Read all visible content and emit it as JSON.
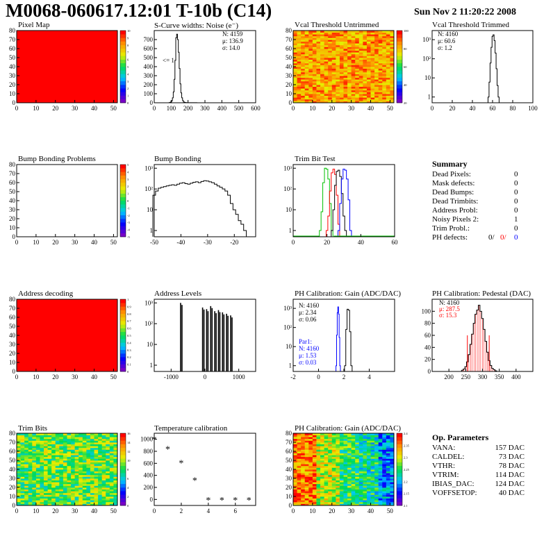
{
  "header": {
    "title": "M0068-060617.12:01 T-10b (C14)",
    "date": "Sun Nov  2 11:20:22 2008"
  },
  "panels": {
    "pixel_map": {
      "title": "Pixel Map"
    },
    "scurve": {
      "title": "S-Curve widths: Noise (e⁻)",
      "stats": [
        "N: 4159",
        "μ: 136.9",
        "σ: 14.0"
      ],
      "note": "<= 1"
    },
    "vcal_untrimmed": {
      "title": "Vcal Threshold Untrimmed"
    },
    "vcal_trimmed": {
      "title": "Vcal Threshold Trimmed",
      "stats": [
        "N: 4160",
        "μ: 60.6",
        "σ:  1.2"
      ]
    },
    "bump_problems": {
      "title": "Bump Bonding Problems"
    },
    "bump_bonding": {
      "title": "Bump Bonding"
    },
    "trim_bit_test": {
      "title": "Trim Bit Test"
    },
    "address_decoding": {
      "title": "Address decoding"
    },
    "address_levels": {
      "title": "Address Levels"
    },
    "ph_gain": {
      "title": "PH Calibration: Gain (ADC/DAC)",
      "stats": [
        "N: 4160",
        "μ: 2.34",
        "σ: 0.06"
      ],
      "par1": [
        "Par1:",
        "N: 4160",
        "μ: 1.53",
        "σ: 0.03"
      ]
    },
    "ph_pedestal": {
      "title": "PH Calibration: Pedestal (DAC)",
      "stats": [
        "N: 4160",
        "μ: 287.5",
        "σ: 15.3"
      ]
    },
    "trim_bits": {
      "title": "Trim Bits"
    },
    "temperature": {
      "title": "Temperature calibration"
    },
    "ph_gain_map": {
      "title": "PH Calibration: Gain (ADC/DAC)"
    }
  },
  "summary": {
    "header": "Summary",
    "rows": [
      {
        "label": "Dead Pixels:",
        "value": "0"
      },
      {
        "label": "Mask defects:",
        "value": "0"
      },
      {
        "label": "Dead Bumps:",
        "value": "0"
      },
      {
        "label": "Dead Trimbits:",
        "value": "0"
      },
      {
        "label": "Address Probl:",
        "value": "0"
      },
      {
        "label": "Noisy Pixels 2:",
        "value": "1"
      },
      {
        "label": "Trim Probl.:",
        "value": "0"
      }
    ],
    "ph_defects_label": "PH defects:",
    "ph_defects_values": [
      "0/",
      "0/",
      "0"
    ]
  },
  "op_params": {
    "header": "Op. Parameters",
    "rows": [
      {
        "label": "VANA:",
        "value": "157 DAC"
      },
      {
        "label": "CALDEL:",
        "value": "73 DAC"
      },
      {
        "label": "VTHR:",
        "value": "78 DAC"
      },
      {
        "label": "VTRIM:",
        "value": "114 DAC"
      },
      {
        "label": "IBIAS_DAC:",
        "value": "124 DAC"
      },
      {
        "label": "VOFFSETOP:",
        "value": "40 DAC"
      }
    ]
  },
  "colors": {
    "red": "#ff0000",
    "blue": "#0000ff",
    "green": "#00c000",
    "black": "#000000"
  },
  "chart_data": [
    {
      "id": "pixel_map",
      "type": "heatmap",
      "xlim": [
        0,
        52
      ],
      "ylim": [
        0,
        80
      ],
      "xticks": [
        "0",
        "10",
        "20",
        "30",
        "40",
        "50"
      ],
      "yticks": [
        "0",
        "10",
        "20",
        "30",
        "40",
        "50",
        "60",
        "70",
        "80"
      ],
      "fill": "uniform-max",
      "zlim": [
        0,
        10
      ],
      "zticks": [
        "0",
        "1",
        "2",
        "3",
        "4",
        "5",
        "6",
        "7",
        "8",
        "9",
        "10"
      ]
    },
    {
      "id": "scurve",
      "type": "histogram",
      "xlim": [
        0,
        600
      ],
      "ylim": [
        0,
        800
      ],
      "xticks": [
        "0",
        "100",
        "200",
        "300",
        "400",
        "500",
        "600"
      ],
      "yticks": [
        "0",
        "100",
        "200",
        "300",
        "400",
        "500",
        "600",
        "700"
      ],
      "x": [
        90,
        95,
        100,
        105,
        110,
        115,
        120,
        125,
        130,
        135,
        140,
        145,
        150,
        155,
        160,
        165,
        170,
        175,
        180,
        185,
        190,
        200,
        220,
        250
      ],
      "values": [
        2,
        5,
        10,
        22,
        55,
        120,
        260,
        470,
        720,
        760,
        700,
        560,
        380,
        210,
        110,
        55,
        25,
        10,
        5,
        3,
        2,
        1,
        1,
        1
      ]
    },
    {
      "id": "vcal_untrimmed",
      "type": "heatmap",
      "xlim": [
        0,
        52
      ],
      "ylim": [
        0,
        80
      ],
      "xticks": [
        "0",
        "10",
        "20",
        "30",
        "40",
        "50"
      ],
      "yticks": [
        "0",
        "10",
        "20",
        "30",
        "40",
        "50",
        "60",
        "70",
        "80"
      ],
      "fill": "noise-orange",
      "zticks": [
        "20",
        "40",
        "60",
        "80",
        "100"
      ]
    },
    {
      "id": "vcal_trimmed",
      "type": "histogram",
      "log_y": true,
      "xlim": [
        0,
        100
      ],
      "ylim": [
        0.5,
        3000
      ],
      "xticks": [
        "0",
        "20",
        "40",
        "60",
        "80",
        "100"
      ],
      "yticks": [
        "1",
        "10",
        "10²",
        "10³"
      ],
      "x": [
        56,
        57,
        58,
        59,
        60,
        61,
        62,
        63,
        64,
        65,
        66
      ],
      "values": [
        1,
        6,
        60,
        400,
        1500,
        1800,
        900,
        200,
        30,
        4,
        1
      ]
    },
    {
      "id": "bump_problems",
      "type": "heatmap",
      "xlim": [
        0,
        52
      ],
      "ylim": [
        0,
        80
      ],
      "xticks": [
        "0",
        "10",
        "20",
        "30",
        "40",
        "50"
      ],
      "yticks": [
        "0",
        "10",
        "20",
        "30",
        "40",
        "50",
        "60",
        "70",
        "80"
      ],
      "fill": "empty",
      "zticks": [
        "-5",
        "-4",
        "-3",
        "-2",
        "-1",
        "0",
        "1",
        "2",
        "3",
        "4",
        "5"
      ]
    },
    {
      "id": "bump_bonding",
      "type": "histogram",
      "log_y": true,
      "xlim": [
        -50,
        -12
      ],
      "ylim": [
        0.5,
        1500
      ],
      "xticks": [
        "-50",
        "-40",
        "-30",
        "-20"
      ],
      "yticks": [
        "1",
        "10",
        "10²",
        "10³"
      ],
      "x": [
        -50,
        -49,
        -48,
        -47,
        -46,
        -45,
        -44,
        -43,
        -42,
        -41,
        -40,
        -39,
        -38,
        -37,
        -36,
        -35,
        -34,
        -33,
        -32,
        -31,
        -30,
        -29,
        -28,
        -27,
        -26,
        -25,
        -24,
        -23,
        -22,
        -21,
        -20,
        -19,
        -18,
        -17,
        -16
      ],
      "values": [
        50,
        80,
        110,
        120,
        130,
        140,
        150,
        160,
        150,
        170,
        190,
        200,
        180,
        170,
        190,
        210,
        220,
        200,
        230,
        250,
        240,
        220,
        200,
        170,
        140,
        120,
        100,
        80,
        50,
        20,
        10,
        6,
        3,
        2,
        1
      ]
    },
    {
      "id": "trim_bit_test",
      "type": "histogram",
      "log_y": true,
      "xlim": [
        0,
        60
      ],
      "ylim": [
        0.5,
        1500
      ],
      "xticks": [
        "0",
        "20",
        "40",
        "60"
      ],
      "yticks": [
        "1",
        "10",
        "10²",
        "10³"
      ],
      "series": [
        {
          "name": "",
          "color": "#00c000",
          "x": [
            16,
            17,
            18,
            19,
            20,
            21,
            22,
            23
          ],
          "values": [
            1,
            8,
            200,
            1000,
            900,
            300,
            20,
            1
          ]
        },
        {
          "name": "",
          "color": "#ff0000",
          "x": [
            20,
            21,
            22,
            23,
            24,
            25,
            26,
            27
          ],
          "values": [
            1,
            5,
            80,
            600,
            900,
            500,
            50,
            2
          ]
        },
        {
          "name": "",
          "color": "#000000",
          "x": [
            23,
            24,
            25,
            26,
            27,
            28,
            29,
            30,
            31
          ],
          "values": [
            1,
            10,
            150,
            700,
            800,
            400,
            60,
            5,
            1
          ]
        },
        {
          "name": "",
          "color": "#0000ff",
          "x": [
            27,
            28,
            29,
            30,
            31,
            32,
            33,
            34
          ],
          "values": [
            1,
            20,
            300,
            900,
            800,
            300,
            30,
            1
          ]
        }
      ]
    },
    {
      "id": "address_decoding",
      "type": "heatmap",
      "xlim": [
        0,
        52
      ],
      "ylim": [
        0,
        80
      ],
      "xticks": [
        "0",
        "10",
        "20",
        "30",
        "40",
        "50"
      ],
      "yticks": [
        "0",
        "10",
        "20",
        "30",
        "40",
        "50",
        "60",
        "70",
        "80"
      ],
      "fill": "uniform-max",
      "zticks": [
        "0",
        "0.1",
        "0.2",
        "0.3",
        "0.4",
        "0.5",
        "0.6",
        "0.7",
        "0.8",
        "0.9",
        "1"
      ]
    },
    {
      "id": "address_levels",
      "type": "spikes",
      "log_y": true,
      "xlim": [
        -1500,
        1500
      ],
      "ylim": [
        0.5,
        1500
      ],
      "xticks": [
        "-1000",
        "0",
        "1000"
      ],
      "yticks": [
        "1",
        "10",
        "10²",
        "10³"
      ],
      "x": [
        -720,
        -70,
        50,
        170,
        290,
        400,
        520,
        640,
        760
      ],
      "values": [
        1000,
        600,
        500,
        700,
        400,
        450,
        350,
        300,
        250
      ]
    },
    {
      "id": "ph_gain",
      "type": "histogram",
      "log_y": true,
      "xlim": [
        -2,
        6
      ],
      "ylim": [
        0.5,
        3000
      ],
      "xticks": [
        "-2",
        "0",
        "2",
        "4"
      ],
      "yticks": [
        "1",
        "10",
        "10²",
        "10³"
      ],
      "series": [
        {
          "name": "",
          "color": "#000000",
          "x": [
            2.1,
            2.2,
            2.3,
            2.4,
            2.5,
            2.6
          ],
          "values": [
            1,
            80,
            900,
            800,
            60,
            1
          ]
        },
        {
          "name": "Par1",
          "color": "#0000ff",
          "x": [
            1.4,
            1.45,
            1.5,
            1.55,
            1.6,
            1.65,
            1.7
          ],
          "values": [
            1,
            40,
            600,
            1200,
            500,
            30,
            1
          ]
        }
      ]
    },
    {
      "id": "ph_pedestal",
      "type": "histogram",
      "xlim": [
        150,
        450
      ],
      "ylim": [
        0,
        120
      ],
      "xticks": [
        "200",
        "250",
        "300",
        "350",
        "400"
      ],
      "yticks": [
        "0",
        "20",
        "40",
        "60",
        "80",
        "100"
      ],
      "x": [
        240,
        245,
        250,
        255,
        260,
        265,
        270,
        275,
        280,
        285,
        290,
        295,
        300,
        305,
        310,
        315,
        320,
        325,
        330,
        335,
        340
      ],
      "values": [
        2,
        4,
        8,
        16,
        28,
        45,
        62,
        80,
        95,
        102,
        110,
        100,
        88,
        70,
        50,
        32,
        18,
        10,
        5,
        3,
        1
      ],
      "lines_x": [
        255,
        320
      ]
    },
    {
      "id": "trim_bits",
      "type": "heatmap",
      "xlim": [
        0,
        52
      ],
      "ylim": [
        0,
        80
      ],
      "xticks": [
        "0",
        "10",
        "20",
        "30",
        "40",
        "50"
      ],
      "yticks": [
        "0",
        "10",
        "20",
        "30",
        "40",
        "50",
        "60",
        "70",
        "80"
      ],
      "fill": "noise-green",
      "zticks": [
        "0",
        "2",
        "4",
        "6",
        "8",
        "10",
        "12",
        "14",
        "16"
      ]
    },
    {
      "id": "temperature",
      "type": "scatter",
      "xlim": [
        0,
        7.5
      ],
      "ylim": [
        -100,
        1100
      ],
      "xticks": [
        "0",
        "2",
        "4",
        "6"
      ],
      "yticks": [
        "0",
        "200",
        "400",
        "600",
        "800",
        "1000"
      ],
      "x": [
        0,
        1,
        2,
        3,
        4,
        5,
        6,
        7
      ],
      "values": [
        1000,
        840,
        610,
        320,
        -10,
        -10,
        -10,
        -10
      ]
    },
    {
      "id": "ph_gain_map",
      "type": "heatmap",
      "xlim": [
        0,
        52
      ],
      "ylim": [
        0,
        80
      ],
      "xticks": [
        "0",
        "10",
        "20",
        "30",
        "40",
        "50"
      ],
      "yticks": [
        "0",
        "10",
        "20",
        "30",
        "40",
        "50",
        "60",
        "70",
        "80"
      ],
      "fill": "gain-bands",
      "zticks": [
        "2.1",
        "2.15",
        "2.2",
        "2.25",
        "2.3",
        "2.35",
        "2.4"
      ]
    }
  ]
}
